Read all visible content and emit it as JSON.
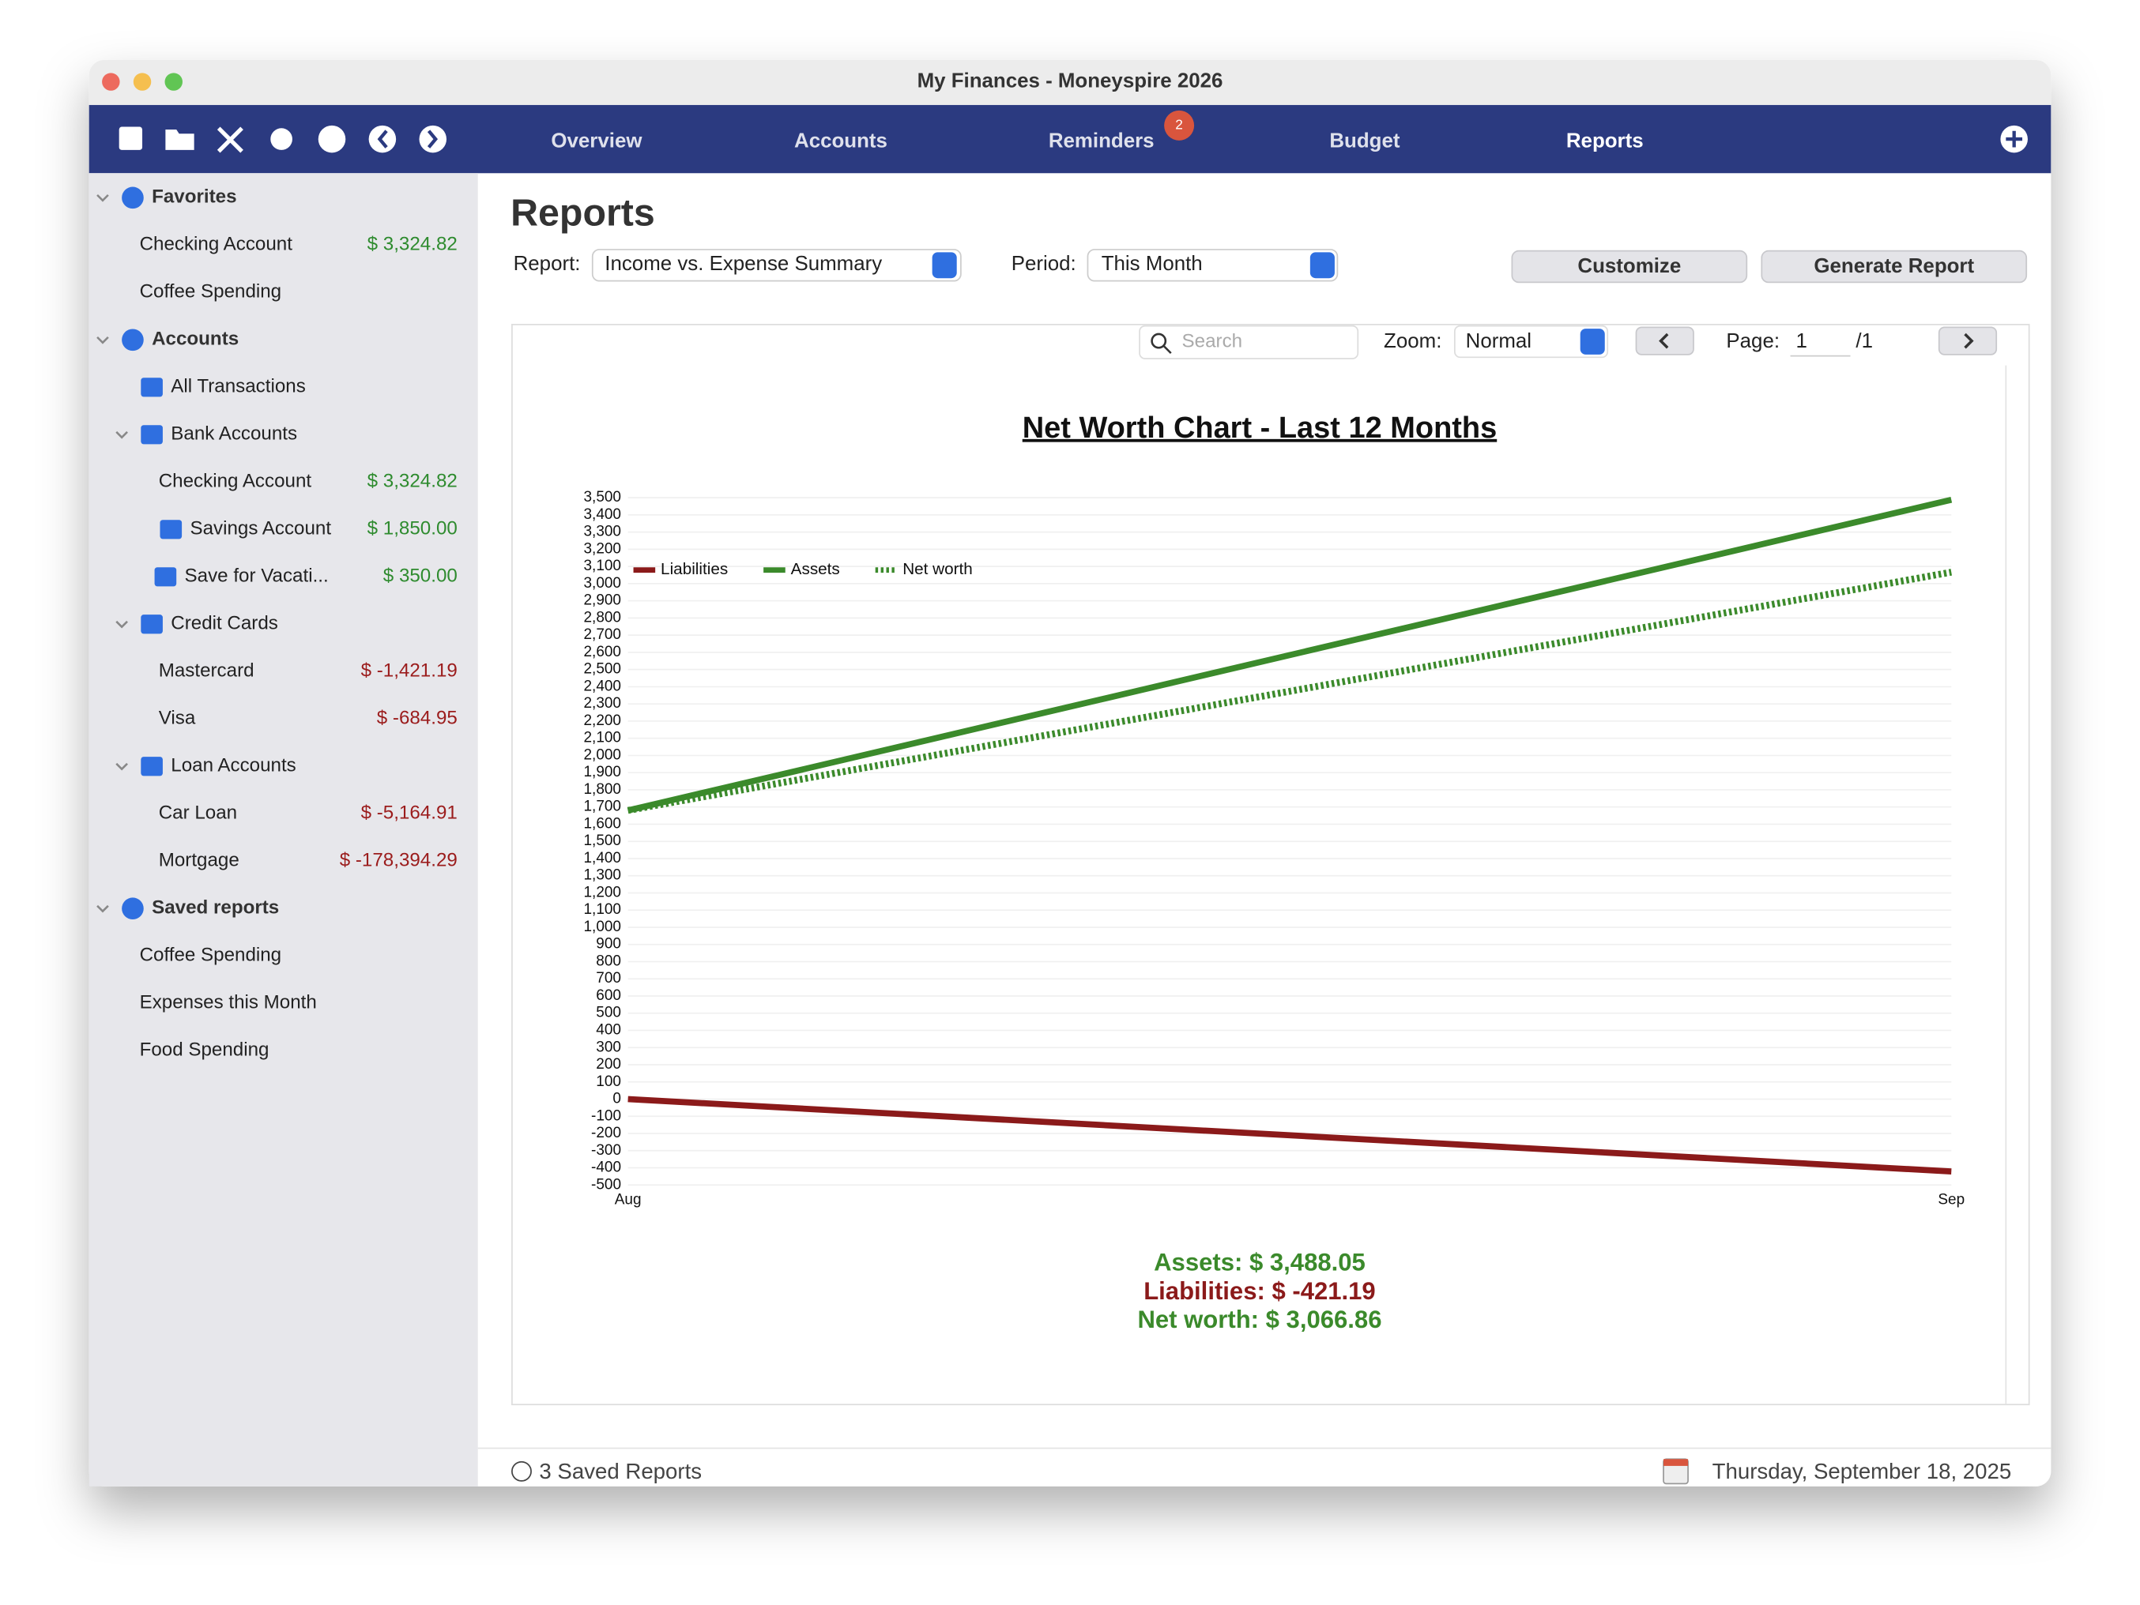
{
  "window": {
    "title": "My Finances - Moneyspire 2026"
  },
  "nav": {
    "tabs": [
      "Overview",
      "Accounts",
      "Reminders",
      "Budget",
      "Reports"
    ],
    "reminders_badge": "2"
  },
  "sidebar": {
    "sections": [
      {
        "title": "Favorites",
        "items": [
          {
            "label": "Checking Account",
            "amount": "$ 3,324.82"
          },
          {
            "label": "Coffee Spending"
          }
        ]
      },
      {
        "title": "Accounts",
        "items": [
          {
            "label": "All Transactions"
          },
          {
            "label": "Bank Accounts",
            "items": [
              {
                "label": "Checking Account",
                "amount": "$ 3,324.82"
              },
              {
                "label": "Savings Account",
                "amount": "$ 1,850.00",
                "items": [
                  {
                    "label": "Save for Vacati...",
                    "amount": "$ 350.00"
                  }
                ]
              }
            ]
          },
          {
            "label": "Credit Cards",
            "items": [
              {
                "label": "Mastercard",
                "amount": "$ -1,421.19"
              },
              {
                "label": "Visa",
                "amount": "$ -684.95"
              }
            ]
          },
          {
            "label": "Loan Accounts",
            "items": [
              {
                "label": "Car Loan",
                "amount": "$ -5,164.91"
              },
              {
                "label": "Mortgage",
                "amount": "$ -178,394.29"
              }
            ]
          }
        ]
      },
      {
        "title": "Saved reports",
        "items": [
          {
            "label": "Coffee Spending"
          },
          {
            "label": "Expenses this Month"
          },
          {
            "label": "Food Spending"
          }
        ]
      }
    ]
  },
  "report": {
    "heading": "Reports",
    "report_label": "Report:",
    "report_value": "Income vs. Expense Summary",
    "period_label": "Period:",
    "period_value": "This Month",
    "buttons": [
      "Customize",
      "Generate Report"
    ],
    "search_placeholder": "Search",
    "zoom_label": "Zoom:",
    "zoom_value": "Normal",
    "page_label": "Page:",
    "page_value": "1",
    "page_total": "/1",
    "summary": [
      "Assets: $ 3,488.05",
      "Liabilities: $ -421.19",
      "Net worth: $ 3,066.86"
    ]
  },
  "status": {
    "saved": "3 Saved Reports",
    "date": "Thursday, September 18, 2025"
  },
  "chart_data": {
    "type": "line",
    "title": "Net Worth Chart - Last 12 Months",
    "categories": [
      "Aug",
      "Sep"
    ],
    "series": [
      {
        "name": "Liabilities",
        "color": "#8b1a1a",
        "values": [
          0,
          -421.19
        ]
      },
      {
        "name": "Assets",
        "color": "#3b8a2b",
        "values": [
          1680,
          3488.05
        ]
      },
      {
        "name": "Net worth",
        "color": "#3b8a2b",
        "dashed": true,
        "values": [
          1680,
          3066.86
        ]
      }
    ],
    "ylim": [
      -500,
      3500
    ],
    "legend": "upper left",
    "grid": true,
    "yticks": [
      -500,
      -400,
      -300,
      -200,
      -100,
      0,
      100,
      200,
      300,
      400,
      500,
      600,
      700,
      800,
      900,
      {
        "value": 1000,
        "label": "1,000"
      },
      {
        "value": 1100,
        "label": "1,100"
      },
      {
        "value": 1200,
        "label": "1,200"
      },
      {
        "value": 1300,
        "label": "1,300"
      },
      {
        "value": 1400,
        "label": "1,400"
      },
      {
        "value": 1500,
        "label": "1,500"
      },
      {
        "value": 1600,
        "label": "1,600"
      },
      {
        "value": 1700,
        "label": "1,700"
      },
      {
        "value": 1800,
        "label": "1,800"
      },
      {
        "value": 1900,
        "label": "1,900"
      },
      {
        "value": 2000,
        "label": "2,000"
      },
      {
        "value": 2100,
        "label": "2,100"
      },
      {
        "value": 2200,
        "label": "2,200"
      },
      {
        "value": 2300,
        "label": "2,300"
      },
      {
        "value": 2400,
        "label": "2,400"
      },
      {
        "value": 2500,
        "label": "2,500"
      },
      {
        "value": 2600,
        "label": "2,600"
      },
      {
        "value": 2700,
        "label": "2,700"
      },
      {
        "value": 2800,
        "label": "2,800"
      },
      {
        "value": 2900,
        "label": "2,900"
      },
      {
        "value": 3000,
        "label": "3,000"
      },
      {
        "value": 3100,
        "label": "3,100"
      },
      {
        "value": 3200,
        "label": "3,200"
      },
      {
        "value": 3300,
        "label": "3,300"
      },
      {
        "value": 3400,
        "label": "3,400"
      },
      {
        "value": 3500,
        "label": "3,500"
      }
    ]
  }
}
